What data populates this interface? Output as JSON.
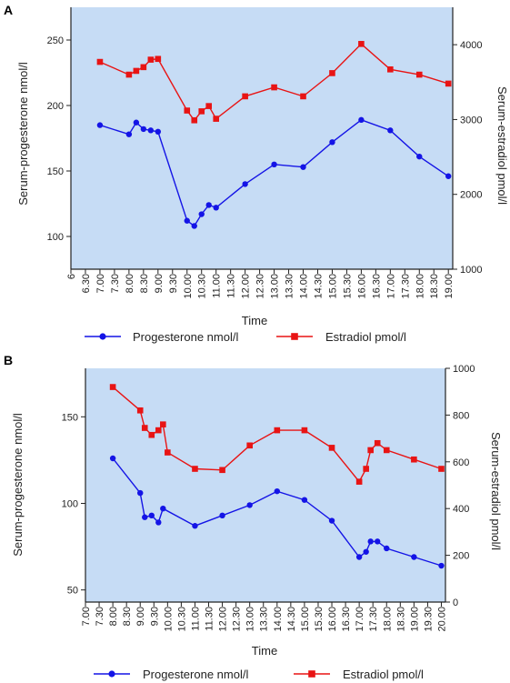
{
  "colors": {
    "plot_background": "#c6dcf5",
    "progesterone": "#1414e6",
    "estradiol": "#e81414",
    "axis": "#222222"
  },
  "chart_data": [
    {
      "panel": "A",
      "type": "line",
      "xlabel": "Time",
      "ylabel_left": "Serum-progesterone nmol/l",
      "ylabel_right": "Serum-estradiol pmol/l",
      "ylim_left": [
        75,
        275
      ],
      "yticks_left": [
        100,
        150,
        200,
        250
      ],
      "ylim_right": [
        1000,
        4500
      ],
      "yticks_right": [
        1000,
        2000,
        3000,
        4000
      ],
      "x_tick_labels": [
        "6",
        "6.30",
        "7.00",
        "7.30",
        "8.00",
        "8.30",
        "9.00",
        "9.30",
        "10.00",
        "10.30",
        "11.00",
        "11.30",
        "12.00",
        "12.30",
        "13.00",
        "13.30",
        "14.00",
        "14.30",
        "15.00",
        "15.30",
        "16.00",
        "16.30",
        "17.00",
        "17.30",
        "18.00",
        "18.30",
        "19.00"
      ],
      "xlim_hours": [
        6,
        19.15
      ],
      "legend_position": "bottom",
      "series": [
        {
          "name": "Progesterone nmol/l",
          "axis": "left",
          "marker": "circle",
          "x": [
            "7.00",
            "8.00",
            "8.15",
            "8.30",
            "8.45",
            "9.00",
            "10.00",
            "10.15",
            "10.30",
            "10.45",
            "11.00",
            "12.00",
            "13.00",
            "14.00",
            "15.00",
            "16.00",
            "17.00",
            "18.00",
            "19.00"
          ],
          "values": [
            185,
            178,
            187,
            182,
            181,
            180,
            112,
            108,
            117,
            124,
            122,
            140,
            155,
            153,
            172,
            189,
            181,
            161,
            146
          ]
        },
        {
          "name": "Estradiol pmol/l",
          "axis": "right",
          "marker": "square",
          "x": [
            "7.00",
            "8.00",
            "8.15",
            "8.30",
            "8.45",
            "9.00",
            "10.00",
            "10.15",
            "10.30",
            "10.45",
            "11.00",
            "12.00",
            "13.00",
            "14.00",
            "15.00",
            "16.00",
            "17.00",
            "18.00",
            "19.00"
          ],
          "values": [
            3770,
            3600,
            3650,
            3700,
            3800,
            3810,
            3120,
            2990,
            3110,
            3180,
            3010,
            3310,
            3430,
            3310,
            3620,
            4010,
            3670,
            3600,
            3480
          ]
        }
      ]
    },
    {
      "panel": "B",
      "type": "line",
      "xlabel": "Time",
      "ylabel_left": "Serum-progesterone nmol/l",
      "ylabel_right": "Serum-estradiol pmol/l",
      "ylim_left": [
        43,
        178
      ],
      "yticks_left": [
        50,
        100,
        150
      ],
      "ylim_right": [
        0,
        1000
      ],
      "yticks_right": [
        0,
        200,
        400,
        600,
        800,
        1000
      ],
      "x_tick_labels": [
        "7.00",
        "7.30",
        "8.00",
        "8.30",
        "9.00",
        "9.30",
        "10.00",
        "10.30",
        "11.00",
        "11.30",
        "12.00",
        "12.30",
        "13.00",
        "13.30",
        "14.00",
        "14.30",
        "15.00",
        "15.30",
        "16.00",
        "16.30",
        "17.00",
        "17.30",
        "18.00",
        "18.30",
        "19.00",
        "19.30",
        "20.00"
      ],
      "xlim_hours": [
        7,
        20.15
      ],
      "legend_position": "bottom",
      "series": [
        {
          "name": "Progesterone nmol/l",
          "axis": "left",
          "marker": "circle",
          "x": [
            "8.00",
            "9.00",
            "9.10",
            "9.25",
            "9.40",
            "9.50",
            "11.00",
            "12.00",
            "13.00",
            "14.00",
            "15.00",
            "16.00",
            "17.00",
            "17.15",
            "17.25",
            "17.40",
            "18.00",
            "19.00",
            "20.00"
          ],
          "values": [
            126,
            106,
            92,
            93,
            89,
            97,
            87,
            93,
            99,
            107,
            102,
            90,
            69,
            72,
            78,
            78,
            74,
            69,
            64
          ]
        },
        {
          "name": "Estradiol pmol/l",
          "axis": "right",
          "marker": "square",
          "x": [
            "8.00",
            "9.00",
            "9.10",
            "9.25",
            "9.40",
            "9.50",
            "10.00",
            "11.00",
            "12.00",
            "13.00",
            "14.00",
            "15.00",
            "16.00",
            "17.00",
            "17.15",
            "17.25",
            "17.40",
            "18.00",
            "19.00",
            "20.00"
          ],
          "values": [
            920,
            820,
            745,
            715,
            735,
            760,
            640,
            570,
            565,
            670,
            735,
            735,
            660,
            515,
            570,
            650,
            680,
            650,
            610,
            570
          ]
        }
      ]
    }
  ]
}
